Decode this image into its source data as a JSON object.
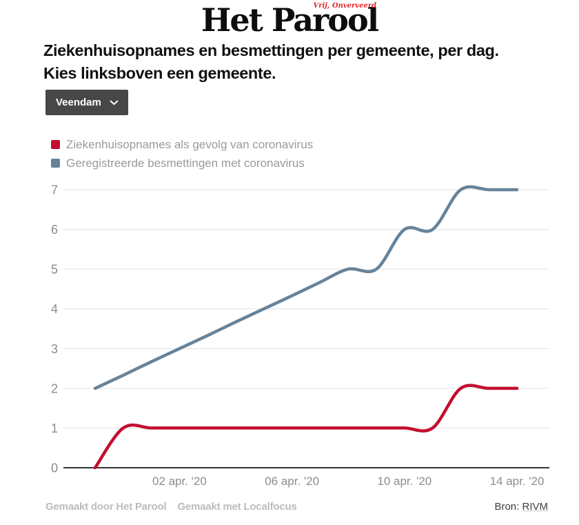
{
  "logo": {
    "title": "Het Parool",
    "tagline": "Vrij, Onverveerd"
  },
  "header": {
    "title_line1": "Ziekenhuisopnames en besmettingen per gemeente, per dag.",
    "title_line2": "Kies linksboven een gemeente."
  },
  "controls": {
    "municipality_dropdown": {
      "value": "Veendam"
    }
  },
  "legend": {
    "items": [
      {
        "label": "Ziekenhuisopnames als gevolg van coronavirus",
        "color": "#c30e2f"
      },
      {
        "label": "Geregistreerde besmettingen met coronavirus",
        "color": "#66839a"
      }
    ]
  },
  "chart_data": {
    "type": "line",
    "x": [
      "30 mrt",
      "31 mrt",
      "1 apr",
      "2 apr",
      "3 apr",
      "4 apr",
      "5 apr",
      "6 apr",
      "7 apr",
      "8 apr",
      "9 apr",
      "10 apr",
      "11 apr",
      "12 apr",
      "13 apr",
      "14 apr"
    ],
    "series": [
      {
        "name": "Ziekenhuisopnames als gevolg van coronavirus",
        "color": "#c30e2f",
        "values": [
          0,
          1,
          1,
          1,
          1,
          1,
          1,
          1,
          1,
          1,
          1,
          1,
          1,
          2,
          2,
          2
        ]
      },
      {
        "name": "Geregistreerde besmettingen met coronavirus",
        "color": "#66839a",
        "values": [
          2,
          2.33,
          2.67,
          3,
          3.33,
          3.67,
          4,
          4.33,
          4.67,
          5,
          5,
          6,
          6,
          7,
          7,
          7
        ]
      }
    ],
    "ylim": [
      0,
      7
    ],
    "y_ticks": [
      0,
      1,
      2,
      3,
      4,
      5,
      6,
      7
    ],
    "x_tick_labels": [
      "02 apr. '20",
      "06 apr. '20",
      "10 apr. '20",
      "14 apr. '20"
    ],
    "x_tick_positions": [
      3,
      7,
      11,
      15
    ],
    "grid": true,
    "grid_color": "#e7e7e7",
    "axis_color": "#333333",
    "legend_position": "top-left"
  },
  "footer": {
    "credit1": "Gemaakt door Het Parool",
    "credit2": "Gemaakt met Localfocus",
    "source_label": "Bron:",
    "source_link": "RIVM"
  }
}
